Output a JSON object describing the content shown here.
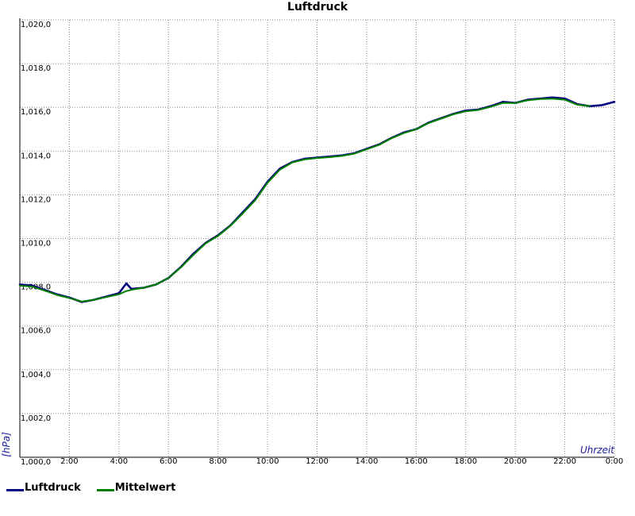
{
  "chart_data": {
    "type": "line",
    "title": "Luftdruck",
    "xlabel": "Uhrzeit",
    "ylabel": "[hPa]",
    "xlim": [
      0,
      24
    ],
    "ylim": [
      1000,
      1020
    ],
    "x_ticks": [
      "2:00",
      "4:00",
      "6:00",
      "8:00",
      "10:00",
      "12:00",
      "14:00",
      "16:00",
      "18:00",
      "20:00",
      "22:00",
      "0:00"
    ],
    "y_ticks": [
      "1,000,0",
      "1,002,0",
      "1,004,0",
      "1,006,0",
      "1,008,0",
      "1,010,0",
      "1,012,0",
      "1,014,0",
      "1,016,0",
      "1,018,0",
      "1,020,0"
    ],
    "grid": true,
    "legend_position": "bottom-left",
    "colors": {
      "Luftdruck": "#000080",
      "Mittelwert": "#008000"
    },
    "series": [
      {
        "name": "Luftdruck",
        "points": [
          [
            0,
            1007.9
          ],
          [
            0.5,
            1007.85
          ],
          [
            1,
            1007.65
          ],
          [
            1.5,
            1007.45
          ],
          [
            2,
            1007.3
          ],
          [
            2.5,
            1007.1
          ],
          [
            3,
            1007.2
          ],
          [
            3.5,
            1007.35
          ],
          [
            4,
            1007.5
          ],
          [
            4.3,
            1007.95
          ],
          [
            4.5,
            1007.7
          ],
          [
            5,
            1007.75
          ],
          [
            5.5,
            1007.9
          ],
          [
            6,
            1008.2
          ],
          [
            6.5,
            1008.7
          ],
          [
            7,
            1009.3
          ],
          [
            7.5,
            1009.8
          ],
          [
            8,
            1010.15
          ],
          [
            8.5,
            1010.6
          ],
          [
            9,
            1011.2
          ],
          [
            9.5,
            1011.8
          ],
          [
            10,
            1012.6
          ],
          [
            10.5,
            1013.2
          ],
          [
            11,
            1013.5
          ],
          [
            11.5,
            1013.65
          ],
          [
            12,
            1013.7
          ],
          [
            12.5,
            1013.75
          ],
          [
            13,
            1013.8
          ],
          [
            13.5,
            1013.9
          ],
          [
            14,
            1014.1
          ],
          [
            14.5,
            1014.3
          ],
          [
            15,
            1014.6
          ],
          [
            15.5,
            1014.85
          ],
          [
            16,
            1015.0
          ],
          [
            16.5,
            1015.3
          ],
          [
            17,
            1015.5
          ],
          [
            17.5,
            1015.7
          ],
          [
            18,
            1015.85
          ],
          [
            18.5,
            1015.9
          ],
          [
            19,
            1016.05
          ],
          [
            19.5,
            1016.25
          ],
          [
            20,
            1016.2
          ],
          [
            20.5,
            1016.35
          ],
          [
            21,
            1016.4
          ],
          [
            21.5,
            1016.45
          ],
          [
            22,
            1016.4
          ],
          [
            22.5,
            1016.15
          ],
          [
            23,
            1016.05
          ],
          [
            23.5,
            1016.1
          ],
          [
            24,
            1016.25
          ]
        ]
      },
      {
        "name": "Mittelwert",
        "points": [
          [
            0,
            1007.85
          ],
          [
            0.5,
            1007.8
          ],
          [
            1,
            1007.62
          ],
          [
            1.5,
            1007.42
          ],
          [
            2,
            1007.28
          ],
          [
            2.5,
            1007.12
          ],
          [
            3,
            1007.2
          ],
          [
            3.5,
            1007.33
          ],
          [
            4,
            1007.45
          ],
          [
            4.3,
            1007.6
          ],
          [
            4.5,
            1007.65
          ],
          [
            5,
            1007.75
          ],
          [
            5.5,
            1007.9
          ],
          [
            6,
            1008.2
          ],
          [
            6.5,
            1008.68
          ],
          [
            7,
            1009.25
          ],
          [
            7.5,
            1009.78
          ],
          [
            8,
            1010.12
          ],
          [
            8.5,
            1010.58
          ],
          [
            9,
            1011.15
          ],
          [
            9.5,
            1011.75
          ],
          [
            10,
            1012.55
          ],
          [
            10.5,
            1013.15
          ],
          [
            11,
            1013.48
          ],
          [
            11.5,
            1013.62
          ],
          [
            12,
            1013.68
          ],
          [
            12.5,
            1013.72
          ],
          [
            13,
            1013.78
          ],
          [
            13.5,
            1013.88
          ],
          [
            14,
            1014.08
          ],
          [
            14.5,
            1014.28
          ],
          [
            15,
            1014.58
          ],
          [
            15.5,
            1014.82
          ],
          [
            16,
            1015.0
          ],
          [
            16.5,
            1015.28
          ],
          [
            17,
            1015.48
          ],
          [
            17.5,
            1015.68
          ],
          [
            18,
            1015.82
          ],
          [
            18.5,
            1015.88
          ],
          [
            19,
            1016.02
          ],
          [
            19.5,
            1016.2
          ],
          [
            20,
            1016.2
          ],
          [
            20.5,
            1016.32
          ],
          [
            21,
            1016.38
          ],
          [
            21.5,
            1016.4
          ],
          [
            22,
            1016.35
          ],
          [
            22.5,
            1016.12
          ],
          [
            23,
            1016.05
          ]
        ]
      }
    ]
  }
}
